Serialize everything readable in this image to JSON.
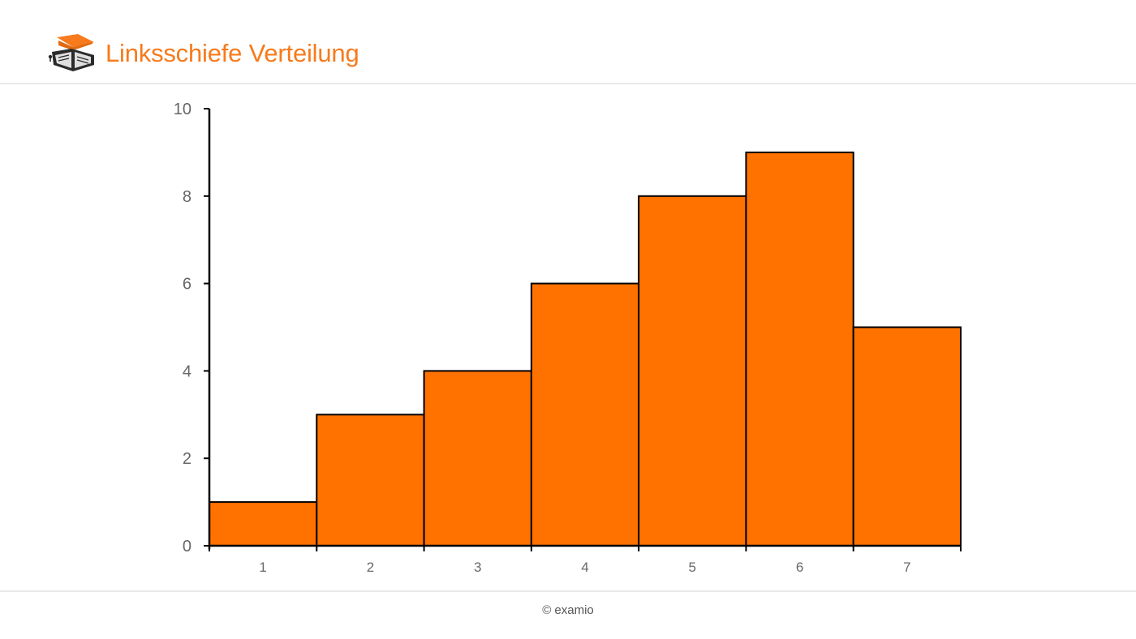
{
  "header": {
    "title": "Linksschiefe Verteilung",
    "logo_icon": "graduation-cap-book-icon",
    "accent_color": "#f77a1c"
  },
  "footer": {
    "copyright": "© examio"
  },
  "chart_data": {
    "type": "bar",
    "title": "",
    "xlabel": "",
    "ylabel": "",
    "categories": [
      "1",
      "2",
      "3",
      "4",
      "5",
      "6",
      "7"
    ],
    "values": [
      1,
      3,
      4,
      6,
      8,
      9,
      5
    ],
    "ylim": [
      0,
      10
    ],
    "yticks": [
      "0",
      "2",
      "4",
      "6",
      "8",
      "10"
    ],
    "grid": false,
    "legend": "none",
    "bar_color": "#ff7200",
    "edge_color": "#000000"
  }
}
